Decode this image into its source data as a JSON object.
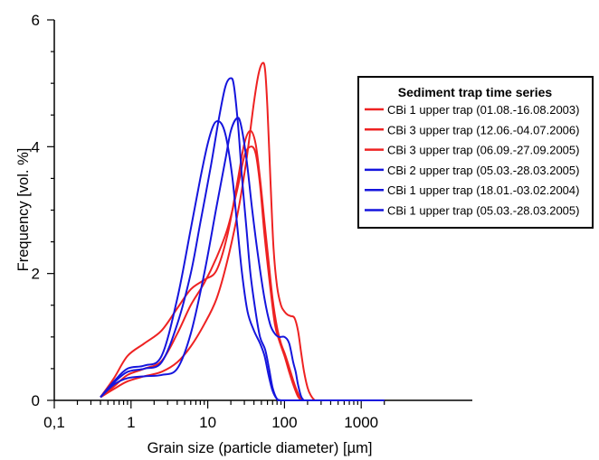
{
  "chart_data": {
    "type": "line",
    "xlabel": "Grain size (particle diameter) [µm]",
    "ylabel": "Frequency [vol. %]",
    "x_scale": "log",
    "xlim": [
      0.1,
      2000
    ],
    "ylim": [
      0,
      6
    ],
    "x_ticks": [
      0.1,
      1,
      10,
      100,
      1000
    ],
    "x_tick_labels": [
      "0,1",
      "1",
      "10",
      "100",
      "1000"
    ],
    "y_ticks": [
      0,
      2,
      4,
      6
    ],
    "y_tick_labels": [
      "0",
      "2",
      "4",
      "6"
    ],
    "grid": false,
    "legend": {
      "title": "Sediment trap time series",
      "placement": "top-right"
    },
    "series": [
      {
        "name": "CBi 1 upper trap (01.08.-16.08.2003)",
        "color": "#ee2222",
        "x": [
          0.4,
          0.6,
          0.9,
          1.5,
          2.5,
          4,
          6,
          9,
          13,
          18,
          25,
          32,
          40,
          46,
          52,
          56,
          60,
          66,
          72,
          80,
          90,
          100,
          110,
          120,
          135,
          150,
          165,
          180,
          200,
          220,
          250,
          300,
          400,
          1000,
          2000
        ],
        "y": [
          0.05,
          0.18,
          0.3,
          0.38,
          0.45,
          0.6,
          0.85,
          1.2,
          1.6,
          2.2,
          3.0,
          3.8,
          4.7,
          5.15,
          5.32,
          5.2,
          4.6,
          3.4,
          2.4,
          1.8,
          1.5,
          1.4,
          1.35,
          1.33,
          1.3,
          1.1,
          0.75,
          0.45,
          0.2,
          0.08,
          0.0,
          0.0,
          0.0,
          0.0,
          0.0
        ]
      },
      {
        "name": "CBi 3 upper trap (12.06.-04.07.2006)",
        "color": "#ee2222",
        "x": [
          0.4,
          0.6,
          0.9,
          1.5,
          2.5,
          4,
          6,
          9,
          13,
          18,
          24,
          30,
          36,
          42,
          48,
          55,
          62,
          70,
          80,
          90,
          100,
          110,
          120,
          140,
          160,
          180,
          200,
          250,
          1000,
          2000
        ],
        "y": [
          0.05,
          0.35,
          0.7,
          0.9,
          1.1,
          1.45,
          1.75,
          1.9,
          2.05,
          2.6,
          3.4,
          4.05,
          4.25,
          4.05,
          3.5,
          2.8,
          2.2,
          1.6,
          1.15,
          0.9,
          0.75,
          0.6,
          0.45,
          0.2,
          0.05,
          0.0,
          0.0,
          0.0,
          0.0,
          0.0
        ]
      },
      {
        "name": "CBi 3 upper trap (06.09.-27.09.2005)",
        "color": "#ee2222",
        "x": [
          0.4,
          0.6,
          0.9,
          1.5,
          2.5,
          4,
          6,
          9,
          13,
          18,
          24,
          30,
          36,
          42,
          48,
          55,
          65,
          75,
          85,
          100,
          115,
          130,
          150,
          170,
          200,
          1000,
          2000
        ],
        "y": [
          0.05,
          0.22,
          0.4,
          0.5,
          0.62,
          1.05,
          1.5,
          1.85,
          2.25,
          2.7,
          3.3,
          3.85,
          4.0,
          3.9,
          3.4,
          2.6,
          1.8,
          1.2,
          0.95,
          0.7,
          0.45,
          0.25,
          0.06,
          0.0,
          0.0,
          0.0,
          0.0
        ]
      },
      {
        "name": "CBi 2 upper trap (05.03.-28.03.2005)",
        "color": "#1515dd",
        "x": [
          0.4,
          0.6,
          0.9,
          1.5,
          2.5,
          4,
          6,
          8,
          10,
          12,
          14,
          16,
          18,
          21,
          24,
          28,
          33,
          40,
          48,
          55,
          62,
          70,
          80,
          90,
          100,
          1000,
          2000
        ],
        "y": [
          0.05,
          0.3,
          0.5,
          0.55,
          0.7,
          1.6,
          2.7,
          3.5,
          4.05,
          4.35,
          4.4,
          4.3,
          4.05,
          3.5,
          2.8,
          2.0,
          1.4,
          1.1,
          0.9,
          0.7,
          0.4,
          0.15,
          0.02,
          0.0,
          0.0,
          0.0,
          0.0
        ]
      },
      {
        "name": "CBi 1 upper trap (18.01.-03.02.2004)",
        "color": "#1515dd",
        "x": [
          0.4,
          0.6,
          0.9,
          1.5,
          2.5,
          4,
          6,
          8,
          11,
          14,
          17,
          20,
          22,
          25,
          28,
          32,
          36,
          42,
          48,
          56,
          63,
          70,
          80,
          90,
          100,
          1000,
          2000
        ],
        "y": [
          0.05,
          0.28,
          0.45,
          0.5,
          0.6,
          1.2,
          2.0,
          2.8,
          3.7,
          4.45,
          4.95,
          5.08,
          4.95,
          4.3,
          3.5,
          2.7,
          2.0,
          1.4,
          1.0,
          0.8,
          0.5,
          0.2,
          0.02,
          0.0,
          0.0,
          0.0,
          0.0
        ]
      },
      {
        "name": "CBi 1 upper trap (05.03.-28.03.2005)",
        "color": "#1515dd",
        "x": [
          0.4,
          0.6,
          0.9,
          1.5,
          2.5,
          4,
          6,
          9,
          13,
          17,
          20,
          24,
          27,
          32,
          38,
          45,
          55,
          65,
          75,
          85,
          100,
          115,
          130,
          140,
          150,
          165,
          180,
          200,
          1000,
          2000
        ],
        "y": [
          0.05,
          0.25,
          0.35,
          0.38,
          0.4,
          0.5,
          1.05,
          2.0,
          3.05,
          3.8,
          4.25,
          4.45,
          4.35,
          3.8,
          3.0,
          2.3,
          1.6,
          1.2,
          1.05,
          1.0,
          1.0,
          0.9,
          0.6,
          0.45,
          0.25,
          0.06,
          0.0,
          0.0,
          0.0,
          0.0
        ]
      }
    ]
  }
}
